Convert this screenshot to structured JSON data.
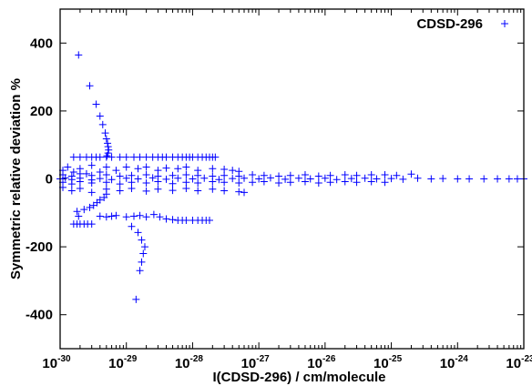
{
  "chart_data": {
    "type": "scatter",
    "xlabel": "I(CDSD-296) / cm/molecule",
    "ylabel": "Symmetric relative deviation %",
    "x_scale": "log",
    "xlim": [
      1e-30,
      1e-23
    ],
    "ylim": [
      -500,
      500
    ],
    "x_ticks": [
      {
        "base": "10",
        "exp": "-30",
        "value": 1e-30
      },
      {
        "base": "10",
        "exp": "-29",
        "value": 1e-29
      },
      {
        "base": "10",
        "exp": "-28",
        "value": 1e-28
      },
      {
        "base": "10",
        "exp": "-27",
        "value": 1e-27
      },
      {
        "base": "10",
        "exp": "-26",
        "value": 1e-26
      },
      {
        "base": "10",
        "exp": "-25",
        "value": 1e-25
      },
      {
        "base": "10",
        "exp": "-24",
        "value": 1e-24
      },
      {
        "base": "10",
        "exp": "-23",
        "value": 1e-23
      }
    ],
    "y_ticks": [
      {
        "label": "400",
        "value": 400
      },
      {
        "label": "200",
        "value": 200
      },
      {
        "label": "0",
        "value": 0
      },
      {
        "label": "-200",
        "value": -200
      },
      {
        "label": "-400",
        "value": -400
      }
    ],
    "legend_position": "top-right",
    "series": [
      {
        "name": "CDSD-296",
        "color": "#0000ff",
        "marker": "plus",
        "points": [
          [
            1.9e-30,
            365
          ],
          [
            2.8e-30,
            274
          ],
          [
            3.5e-30,
            220
          ],
          [
            4e-30,
            185
          ],
          [
            4.4e-30,
            160
          ],
          [
            4.8e-30,
            135
          ],
          [
            5e-30,
            118
          ],
          [
            5.2e-30,
            105
          ],
          [
            5.3e-30,
            95
          ],
          [
            5.4e-30,
            85
          ],
          [
            5.3e-30,
            76
          ],
          [
            5.1e-30,
            68
          ],
          [
            1.6e-30,
            64
          ],
          [
            2e-30,
            64
          ],
          [
            2.5e-30,
            64
          ],
          [
            3e-30,
            64
          ],
          [
            3.5e-30,
            64
          ],
          [
            4e-30,
            64
          ],
          [
            5e-30,
            64
          ],
          [
            6e-30,
            64
          ],
          [
            8e-30,
            64
          ],
          [
            1e-29,
            64
          ],
          [
            1.3e-29,
            64
          ],
          [
            1.6e-29,
            64
          ],
          [
            2e-29,
            64
          ],
          [
            2.5e-29,
            64
          ],
          [
            3e-29,
            64
          ],
          [
            3.5e-29,
            64
          ],
          [
            4e-29,
            64
          ],
          [
            5e-29,
            64
          ],
          [
            6e-29,
            64
          ],
          [
            7e-29,
            64
          ],
          [
            8e-29,
            64
          ],
          [
            9e-29,
            64
          ],
          [
            1e-28,
            64
          ],
          [
            1.2e-28,
            64
          ],
          [
            1.4e-28,
            64
          ],
          [
            1.6e-28,
            64
          ],
          [
            1.8e-28,
            64
          ],
          [
            2e-28,
            64
          ],
          [
            2.2e-28,
            64
          ],
          [
            1.1e-30,
            25
          ],
          [
            1.3e-30,
            35
          ],
          [
            1.6e-30,
            20
          ],
          [
            2e-30,
            30
          ],
          [
            2.5e-30,
            15
          ],
          [
            3e-30,
            40
          ],
          [
            4e-30,
            20
          ],
          [
            5e-30,
            35
          ],
          [
            7e-30,
            25
          ],
          [
            1e-29,
            35
          ],
          [
            1.5e-29,
            30
          ],
          [
            2e-29,
            35
          ],
          [
            3e-29,
            25
          ],
          [
            4e-29,
            32
          ],
          [
            6e-29,
            30
          ],
          [
            8e-29,
            35
          ],
          [
            1.2e-28,
            25
          ],
          [
            2e-28,
            30
          ],
          [
            3e-28,
            28
          ],
          [
            4e-28,
            25
          ],
          [
            5e-28,
            22
          ],
          [
            1.1e-30,
            12
          ],
          [
            1.5e-30,
            8
          ],
          [
            2e-30,
            15
          ],
          [
            3e-30,
            10
          ],
          [
            5e-30,
            12
          ],
          [
            8e-30,
            8
          ],
          [
            1.2e-29,
            10
          ],
          [
            2e-29,
            12
          ],
          [
            3e-29,
            8
          ],
          [
            5e-29,
            10
          ],
          [
            8e-29,
            12
          ],
          [
            1.2e-28,
            10
          ],
          [
            2e-28,
            8
          ],
          [
            3e-28,
            10
          ],
          [
            5e-28,
            8
          ],
          [
            8e-28,
            12
          ],
          [
            1.2e-27,
            10
          ],
          [
            2e-27,
            8
          ],
          [
            3e-27,
            10
          ],
          [
            5e-27,
            12
          ],
          [
            8e-27,
            8
          ],
          [
            1.2e-26,
            10
          ],
          [
            2e-26,
            12
          ],
          [
            3e-26,
            10
          ],
          [
            5e-26,
            12
          ],
          [
            8e-26,
            12
          ],
          [
            1.2e-25,
            10
          ],
          [
            2e-25,
            14
          ],
          [
            1e-30,
            0
          ],
          [
            1.2e-30,
            3
          ],
          [
            1.5e-30,
            -2
          ],
          [
            2e-30,
            2
          ],
          [
            3e-30,
            -3
          ],
          [
            4e-30,
            1
          ],
          [
            6e-30,
            -2
          ],
          [
            1e-29,
            2
          ],
          [
            1.5e-29,
            0
          ],
          [
            2.5e-29,
            3
          ],
          [
            4e-29,
            -1
          ],
          [
            6e-29,
            2
          ],
          [
            1e-28,
            0
          ],
          [
            1.5e-28,
            2
          ],
          [
            2.5e-28,
            -2
          ],
          [
            4e-28,
            1
          ],
          [
            6e-28,
            2
          ],
          [
            1e-27,
            0
          ],
          [
            1.5e-27,
            3
          ],
          [
            2.5e-27,
            -1
          ],
          [
            4e-27,
            2
          ],
          [
            6e-27,
            0
          ],
          [
            1e-26,
            2
          ],
          [
            1.5e-26,
            -2
          ],
          [
            2.5e-26,
            1
          ],
          [
            4e-26,
            2
          ],
          [
            6e-26,
            0
          ],
          [
            1e-25,
            1
          ],
          [
            1.5e-25,
            -1
          ],
          [
            2.5e-25,
            2
          ],
          [
            4e-25,
            0
          ],
          [
            6e-25,
            1
          ],
          [
            1e-24,
            0
          ],
          [
            1.5e-24,
            0
          ],
          [
            2.5e-24,
            0
          ],
          [
            4e-24,
            0
          ],
          [
            6e-24,
            0
          ],
          [
            8e-24,
            0
          ],
          [
            1e-23,
            0
          ],
          [
            1.1e-30,
            -10
          ],
          [
            1.5e-30,
            -15
          ],
          [
            2e-30,
            -8
          ],
          [
            3e-30,
            -12
          ],
          [
            5e-30,
            -10
          ],
          [
            8e-30,
            -15
          ],
          [
            1.2e-29,
            -10
          ],
          [
            2e-29,
            -12
          ],
          [
            3e-29,
            -8
          ],
          [
            5e-29,
            -14
          ],
          [
            8e-29,
            -10
          ],
          [
            1.2e-28,
            -12
          ],
          [
            2e-28,
            -8
          ],
          [
            3e-28,
            -10
          ],
          [
            5e-28,
            -12
          ],
          [
            8e-28,
            -10
          ],
          [
            1.2e-27,
            -8
          ],
          [
            2e-27,
            -12
          ],
          [
            3e-27,
            -10
          ],
          [
            5e-27,
            -8
          ],
          [
            8e-27,
            -12
          ],
          [
            1.2e-26,
            -10
          ],
          [
            2e-26,
            -8
          ],
          [
            3e-26,
            -10
          ],
          [
            5e-26,
            -8
          ],
          [
            8e-26,
            -10
          ],
          [
            1.1e-30,
            -25
          ],
          [
            1.5e-30,
            -35
          ],
          [
            2e-30,
            -28
          ],
          [
            3e-30,
            -40
          ],
          [
            5e-30,
            -30
          ],
          [
            8e-30,
            -35
          ],
          [
            1.2e-29,
            -28
          ],
          [
            2e-29,
            -36
          ],
          [
            3e-29,
            -30
          ],
          [
            5e-29,
            -34
          ],
          [
            8e-29,
            -28
          ],
          [
            1.2e-28,
            -35
          ],
          [
            2e-28,
            -30
          ],
          [
            3e-28,
            -35
          ],
          [
            5e-28,
            -38
          ],
          [
            6e-28,
            -40
          ],
          [
            5e-30,
            -45
          ],
          [
            4.6e-30,
            -55
          ],
          [
            4e-30,
            -62
          ],
          [
            3.6e-30,
            -70
          ],
          [
            3.2e-30,
            -78
          ],
          [
            2.8e-30,
            -84
          ],
          [
            2.3e-30,
            -90
          ],
          [
            1.8e-30,
            -96
          ],
          [
            1.9e-30,
            -110
          ],
          [
            1.6e-30,
            -133
          ],
          [
            1.8e-30,
            -133
          ],
          [
            2e-30,
            -133
          ],
          [
            2.3e-30,
            -133
          ],
          [
            2.6e-30,
            -133
          ],
          [
            3e-30,
            -133
          ],
          [
            4e-30,
            -110
          ],
          [
            5e-30,
            -112
          ],
          [
            6e-30,
            -110
          ],
          [
            7e-30,
            -108
          ],
          [
            1e-29,
            -112
          ],
          [
            1.3e-29,
            -110
          ],
          [
            1.6e-29,
            -108
          ],
          [
            2e-29,
            -112
          ],
          [
            2.6e-29,
            -105
          ],
          [
            3.2e-29,
            -112
          ],
          [
            4e-29,
            -118
          ],
          [
            5e-29,
            -120
          ],
          [
            6e-29,
            -122
          ],
          [
            7e-29,
            -122
          ],
          [
            8e-29,
            -122
          ],
          [
            1e-28,
            -122
          ],
          [
            1.2e-28,
            -122
          ],
          [
            1.4e-28,
            -122
          ],
          [
            1.6e-28,
            -122
          ],
          [
            1.8e-28,
            -122
          ],
          [
            1.2e-29,
            -140
          ],
          [
            1.5e-29,
            -158
          ],
          [
            1.7e-29,
            -180
          ],
          [
            1.9e-29,
            -200
          ],
          [
            1.8e-29,
            -220
          ],
          [
            1.7e-29,
            -245
          ],
          [
            1.6e-29,
            -270
          ],
          [
            1.4e-29,
            -355
          ]
        ]
      }
    ]
  }
}
